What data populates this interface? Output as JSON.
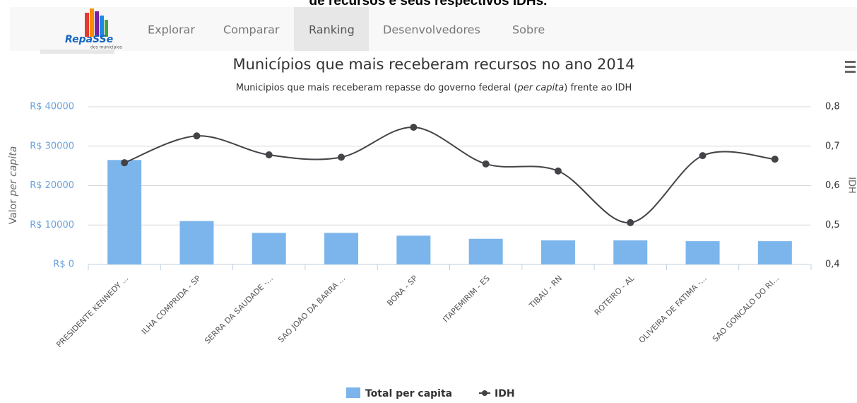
{
  "caption": "de recursos e seus respectivos IDHs.",
  "logo": {
    "name": "RepaSSe",
    "tagline": "dos municípios"
  },
  "nav": {
    "items": [
      "Explorar",
      "Comparar",
      "Ranking",
      "Desenvolvedores",
      "Sobre"
    ],
    "active": "Ranking"
  },
  "chart_data": {
    "type": "bar",
    "title": "Municípios que mais receberam recursos no ano 2014",
    "subtitle_parts": [
      "Municipios que mais receberam repasse do governo federal (",
      "per capita",
      ") frente ao IDH"
    ],
    "y_label_parts": [
      "Valor ",
      "per capita"
    ],
    "y2_label": "IDH",
    "categories": [
      "PRESIDENTE KENNEDY ...",
      "ILHA COMPRIDA - SP",
      "SERRA DA SAUDADE -...",
      "SAO JOAO DA BARRA ...",
      "BORA - SP",
      "ITAPEMIRIM - ES",
      "TIBAU - RN",
      "ROTEIRO - AL",
      "OLIVEIRA DE FATIMA -...",
      "SAO GONCALO DO RI..."
    ],
    "series": [
      {
        "name": "Total per capita",
        "type": "bar",
        "color": "#7cb5ec",
        "values": [
          26500,
          11000,
          8000,
          8000,
          7300,
          6500,
          6100,
          6100,
          5900,
          5900
        ]
      },
      {
        "name": "IDH",
        "type": "line",
        "axis": "y2",
        "color": "#434348",
        "values": [
          0.658,
          0.726,
          0.678,
          0.672,
          0.748,
          0.655,
          0.637,
          0.506,
          0.676,
          0.667
        ]
      }
    ],
    "ylim": [
      0,
      40000
    ],
    "yticks": [
      {
        "value": 0,
        "label": "R$ 0"
      },
      {
        "value": 10000,
        "label": "R$ 10000"
      },
      {
        "value": 20000,
        "label": "R$ 20000"
      },
      {
        "value": 30000,
        "label": "R$ 30000"
      },
      {
        "value": 40000,
        "label": "R$ 40000"
      }
    ],
    "y2lim": [
      0.4,
      0.8
    ],
    "y2ticks": [
      {
        "value": 0.4,
        "label": "0,4"
      },
      {
        "value": 0.5,
        "label": "0,5"
      },
      {
        "value": 0.6,
        "label": "0,6"
      },
      {
        "value": 0.7,
        "label": "0,7"
      },
      {
        "value": 0.8,
        "label": "0,8"
      }
    ],
    "grid": true,
    "legend": "bottom"
  }
}
